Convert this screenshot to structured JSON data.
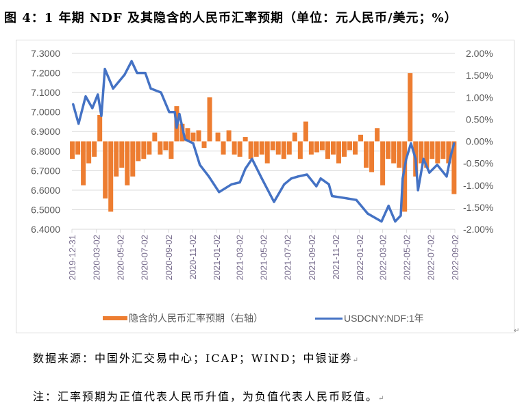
{
  "title": "图 4：1 年期 NDF 及其隐含的人民币汇率预期（单位：元人民币/美元；%）",
  "chart_data": {
    "type": "bar+line",
    "title": "",
    "x_range": [
      "2019-12-31",
      "2022-09-02"
    ],
    "x_tick_labels": [
      "2019-12-31",
      "2020-03-02",
      "2020-05-02",
      "2020-07-02",
      "2020-09-02",
      "2020-11-02",
      "2021-01-02",
      "2021-03-02",
      "2021-05-02",
      "2021-07-02",
      "2021-09-02",
      "2021-11-02",
      "2022-01-02",
      "2022-03-02",
      "2022-05-02",
      "2022-07-02",
      "2022-09-02"
    ],
    "y_left": {
      "range": [
        6.4,
        7.3
      ],
      "ticks": [
        "6.4000",
        "6.5000",
        "6.6000",
        "6.7000",
        "6.8000",
        "6.9000",
        "7.0000",
        "7.1000",
        "7.2000",
        "7.3000"
      ]
    },
    "y_right": {
      "range": [
        -2.0,
        2.0
      ],
      "ticks": [
        "-2.00%",
        "-1.50%",
        "-1.00%",
        "-0.50%",
        "0.00%",
        "0.50%",
        "1.00%",
        "1.50%",
        "2.00%"
      ]
    },
    "grid": true,
    "legend_position": "bottom",
    "series": [
      {
        "name": "隐含的人民币汇率预期（右轴）",
        "type": "bar",
        "axis": "right",
        "color": "#ED7D31",
        "unit": "%",
        "dates": [
          "2020-01-01",
          "2020-01-15",
          "2020-01-29",
          "2020-02-12",
          "2020-02-26",
          "2020-03-11",
          "2020-03-25",
          "2020-04-08",
          "2020-04-22",
          "2020-05-06",
          "2020-05-20",
          "2020-06-03",
          "2020-06-17",
          "2020-07-01",
          "2020-07-15",
          "2020-07-29",
          "2020-08-12",
          "2020-08-26",
          "2020-09-09",
          "2020-09-23",
          "2020-10-07",
          "2020-10-21",
          "2020-11-04",
          "2020-11-18",
          "2020-12-02",
          "2020-12-16",
          "2021-01-06",
          "2021-01-20",
          "2021-02-03",
          "2021-02-17",
          "2021-03-03",
          "2021-03-17",
          "2021-03-31",
          "2021-04-14",
          "2021-04-28",
          "2021-05-12",
          "2021-05-26",
          "2021-06-09",
          "2021-06-23",
          "2021-07-07",
          "2021-07-21",
          "2021-08-04",
          "2021-08-18",
          "2021-09-01",
          "2021-09-15",
          "2021-09-29",
          "2021-10-13",
          "2021-10-27",
          "2021-11-10",
          "2021-11-24",
          "2021-12-08",
          "2021-12-22",
          "2022-01-05",
          "2022-01-19",
          "2022-02-02",
          "2022-02-16",
          "2022-03-02",
          "2022-03-16",
          "2022-03-30",
          "2022-04-13",
          "2022-04-27",
          "2022-05-11",
          "2022-05-25",
          "2022-06-08",
          "2022-06-22",
          "2022-07-06",
          "2022-07-20",
          "2022-08-03",
          "2022-08-17",
          "2022-08-31"
        ],
        "values": [
          -0.4,
          -0.3,
          -1.0,
          -0.5,
          -0.35,
          0.6,
          -1.3,
          -1.6,
          -0.8,
          -0.6,
          -1.0,
          -0.8,
          -0.45,
          -0.4,
          -0.3,
          0.2,
          -0.3,
          -0.2,
          -0.4,
          0.8,
          0.4,
          0.3,
          0.2,
          0.25,
          -0.15,
          1.0,
          0.2,
          -0.3,
          0.25,
          -0.3,
          -0.35,
          0.1,
          -0.4,
          -0.35,
          -0.3,
          -0.5,
          -0.2,
          -0.3,
          -0.4,
          -0.3,
          0.2,
          -0.4,
          0.45,
          -0.3,
          -0.25,
          -0.2,
          -0.4,
          -0.3,
          -0.5,
          -0.35,
          -0.2,
          -0.3,
          0.15,
          -0.6,
          -0.7,
          0.3,
          -1.0,
          -0.4,
          -0.5,
          -0.6,
          -1.6,
          1.55,
          -0.8,
          -0.5,
          -0.6,
          -0.4,
          -0.5,
          -0.4,
          -0.5,
          -1.2
        ]
      },
      {
        "name": "USDCNY:NDF:1年",
        "type": "line",
        "axis": "left",
        "color": "#4472C4",
        "dates": [
          "2020-01-03",
          "2020-01-17",
          "2020-02-04",
          "2020-02-21",
          "2020-03-06",
          "2020-03-15",
          "2020-03-24",
          "2020-04-14",
          "2020-05-13",
          "2020-05-31",
          "2020-06-14",
          "2020-07-05",
          "2020-07-19",
          "2020-08-14",
          "2020-09-04",
          "2020-09-18",
          "2020-09-23",
          "2020-09-30",
          "2020-10-14",
          "2020-11-04",
          "2020-11-21",
          "2020-12-14",
          "2021-01-09",
          "2021-02-10",
          "2021-03-03",
          "2021-03-17",
          "2021-04-03",
          "2021-04-28",
          "2021-05-29",
          "2021-06-24",
          "2021-07-12",
          "2021-07-29",
          "2021-08-21",
          "2021-09-14",
          "2021-09-25",
          "2021-10-16",
          "2021-10-24",
          "2021-11-25",
          "2021-12-25",
          "2022-01-23",
          "2022-02-27",
          "2022-03-17",
          "2022-04-03",
          "2022-04-17",
          "2022-04-22",
          "2022-05-01",
          "2022-05-13",
          "2022-05-25",
          "2022-05-31",
          "2022-06-14",
          "2022-06-29",
          "2022-07-19",
          "2022-08-12",
          "2022-08-23",
          "2022-08-31"
        ],
        "values": [
          7.04,
          6.94,
          7.08,
          7.02,
          7.09,
          6.98,
          7.22,
          7.12,
          7.19,
          7.26,
          7.2,
          7.2,
          7.12,
          7.1,
          7.0,
          7.0,
          6.92,
          6.99,
          6.86,
          6.84,
          6.73,
          6.67,
          6.59,
          6.63,
          6.64,
          6.71,
          6.76,
          6.66,
          6.54,
          6.63,
          6.66,
          6.67,
          6.68,
          6.62,
          6.66,
          6.63,
          6.57,
          6.56,
          6.55,
          6.48,
          6.44,
          6.52,
          6.44,
          6.47,
          6.66,
          6.76,
          6.84,
          6.76,
          6.6,
          6.76,
          6.69,
          6.73,
          6.67,
          6.78,
          6.84
        ]
      }
    ]
  },
  "legend": {
    "bar_label": "隐含的人民币汇率预期（右轴）",
    "line_label": "USDCNY:NDF:1年"
  },
  "footer": {
    "source": "数据来源：中国外汇交易中心；ICAP；WIND；中银证券",
    "note": "注：汇率预期为正值代表人民币升值，为负值代表人民币贬值。",
    "return_mark": "↵"
  }
}
